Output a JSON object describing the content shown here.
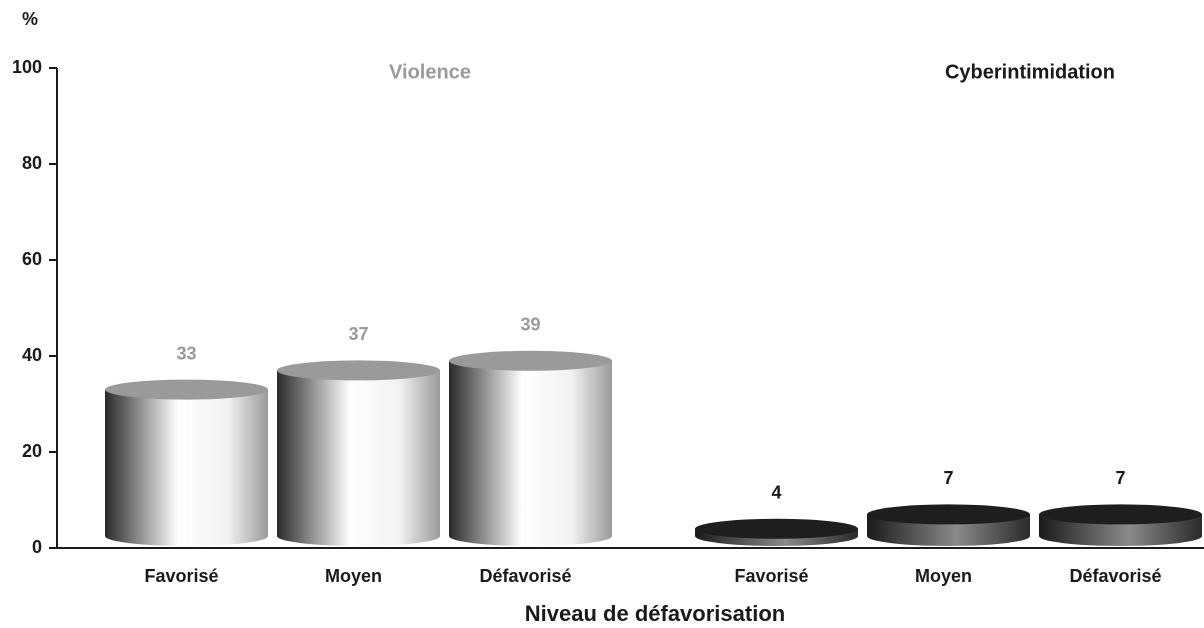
{
  "chart_data": {
    "type": "cylinder-bar",
    "y_label": "%",
    "x_label": "Niveau de défavorisation",
    "categories": [
      "Favorisé",
      "Moyen",
      "Défavorisé"
    ],
    "series": [
      {
        "name": "Violence",
        "color": "#9a9a9a",
        "values": [
          33,
          37,
          39
        ]
      },
      {
        "name": "Cyberintimidation",
        "color": "#1e1e1e",
        "values": [
          4,
          7,
          7
        ]
      }
    ],
    "ylim": [
      0,
      100
    ],
    "yticks": [
      0,
      20,
      40,
      60,
      80,
      100
    ]
  }
}
